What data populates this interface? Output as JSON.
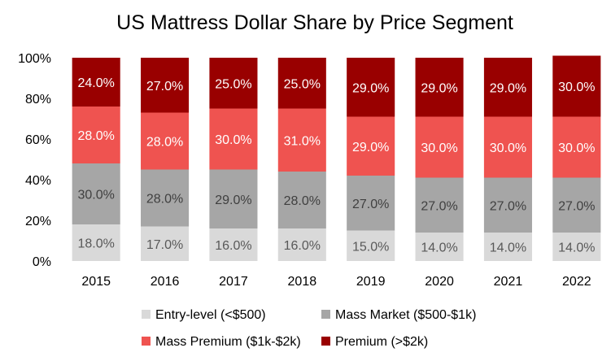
{
  "chart_data": {
    "type": "bar",
    "stacked": true,
    "title": "US Mattress Dollar Share by Price Segment",
    "categories": [
      "2015",
      "2016",
      "2017",
      "2018",
      "2019",
      "2020",
      "2021",
      "2022"
    ],
    "y_ticks": [
      "0%",
      "20%",
      "40%",
      "60%",
      "80%",
      "100%"
    ],
    "ylim": [
      0,
      100
    ],
    "grid": false,
    "legend_position": "bottom",
    "series": [
      {
        "name": "Entry-level (<$500)",
        "color": "#d9d9d9",
        "values": [
          18,
          17,
          16,
          16,
          15,
          14,
          14,
          14
        ],
        "labels": [
          "18.0%",
          "17.0%",
          "16.0%",
          "16.0%",
          "15.0%",
          "14.0%",
          "14.0%",
          "14.0%"
        ]
      },
      {
        "name": "Mass Market  ($500-$1k)",
        "color": "#a6a6a6",
        "values": [
          30,
          28,
          29,
          28,
          27,
          27,
          27,
          27
        ],
        "labels": [
          "30.0%",
          "28.0%",
          "29.0%",
          "28.0%",
          "27.0%",
          "27.0%",
          "27.0%",
          "27.0%"
        ]
      },
      {
        "name": "Mass Premium  ($1k-$2k)",
        "color": "#ef5350",
        "values": [
          28,
          28,
          30,
          31,
          29,
          30,
          30,
          30
        ],
        "labels": [
          "28.0%",
          "28.0%",
          "30.0%",
          "31.0%",
          "29.0%",
          "30.0%",
          "30.0%",
          "30.0%"
        ]
      },
      {
        "name": "Premium  (>$2k)",
        "color": "#990000",
        "values": [
          24,
          27,
          25,
          25,
          29,
          29,
          29,
          30
        ],
        "labels": [
          "24.0%",
          "27.0%",
          "25.0%",
          "25.0%",
          "29.0%",
          "29.0%",
          "29.0%",
          "30.0%"
        ]
      }
    ]
  }
}
